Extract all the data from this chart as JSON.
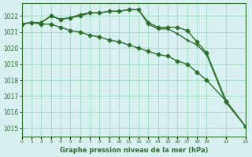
{
  "title": "Graphe pression niveau de la mer (hPa)",
  "background_color": "#d8f0f0",
  "grid_color": "#aaddcc",
  "line_color": "#2d6e2d",
  "xlim": [
    0,
    23
  ],
  "ylim": [
    1014.5,
    1022.8
  ],
  "yticks": [
    1015,
    1016,
    1017,
    1018,
    1019,
    1020,
    1021,
    1022
  ],
  "xticks": [
    0,
    1,
    2,
    3,
    4,
    5,
    6,
    7,
    8,
    9,
    10,
    11,
    12,
    13,
    14,
    15,
    16,
    17,
    18,
    19,
    21,
    23
  ],
  "series1_x": [
    0,
    1,
    2,
    3,
    4,
    5,
    6,
    7,
    8,
    9,
    10,
    11,
    12,
    13,
    14,
    15,
    16,
    17,
    18,
    19,
    21,
    23
  ],
  "series1_y": [
    1021.5,
    1021.6,
    1021.6,
    1022.0,
    1021.8,
    1021.9,
    1022.0,
    1022.2,
    1022.2,
    1022.3,
    1022.3,
    1022.4,
    1022.4,
    1021.6,
    1021.3,
    1021.3,
    1021.3,
    1021.1,
    1020.4,
    1019.7,
    1016.7,
    1015.1
  ],
  "series2_x": [
    0,
    1,
    2,
    3,
    4,
    5,
    6,
    7,
    8,
    9,
    10,
    11,
    12,
    13,
    14,
    15,
    16,
    17,
    18,
    19,
    21,
    23
  ],
  "series2_y": [
    1021.5,
    1021.6,
    1021.6,
    1022.0,
    1021.8,
    1021.9,
    1022.1,
    1022.2,
    1022.2,
    1022.3,
    1022.3,
    1022.4,
    1022.4,
    1021.5,
    1021.2,
    1021.2,
    1020.9,
    1020.5,
    1020.2,
    1019.6,
    1016.6,
    1015.1
  ],
  "series3_x": [
    0,
    1,
    2,
    3,
    4,
    5,
    6,
    7,
    8,
    9,
    10,
    11,
    12,
    13,
    14,
    15,
    16,
    17,
    18,
    19,
    21,
    23
  ],
  "series3_y": [
    1021.5,
    1021.6,
    1021.5,
    1021.5,
    1021.3,
    1021.1,
    1021.0,
    1020.8,
    1020.7,
    1020.5,
    1020.4,
    1020.2,
    1020.0,
    1019.8,
    1019.6,
    1019.5,
    1019.2,
    1019.0,
    1018.5,
    1018.0,
    1016.7,
    1015.1
  ]
}
